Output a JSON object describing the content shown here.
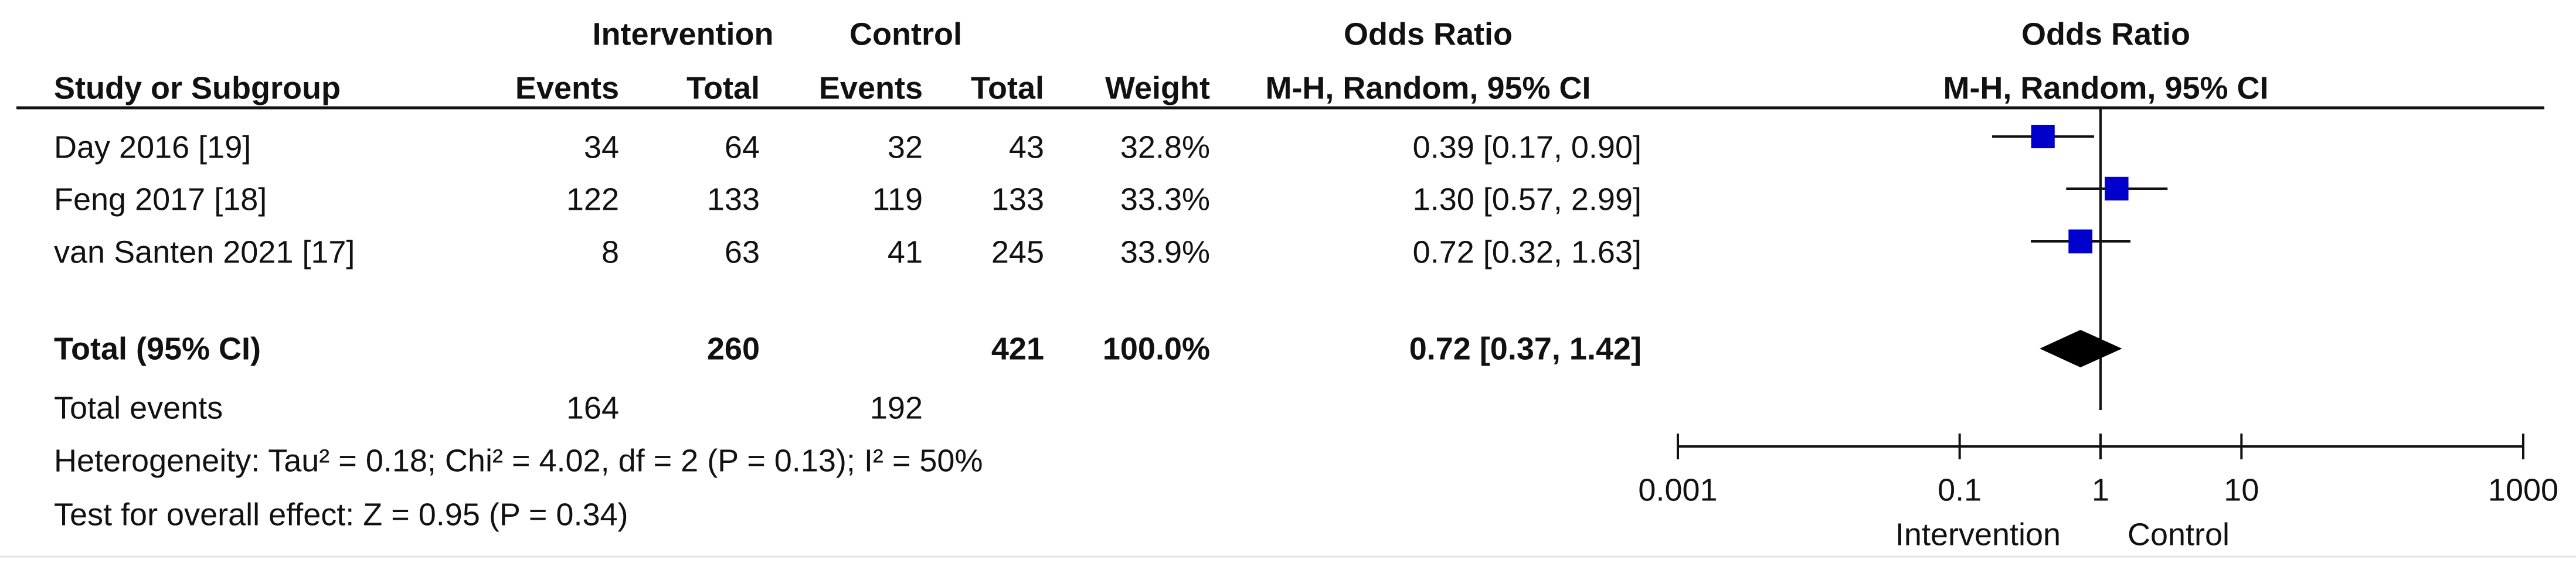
{
  "chart_data": {
    "type": "forest",
    "headers": {
      "group1": "Intervention",
      "group2": "Control",
      "study": "Study or Subgroup",
      "events": "Events",
      "total": "Total",
      "weight": "Weight",
      "effect": "Odds Ratio",
      "method": "M-H, Random, 95% CI"
    },
    "categories": [
      "Day 2016 [19]",
      "Feng 2017 [18]",
      "van Santen 2021 [17]"
    ],
    "intervention_events": [
      34,
      122,
      8
    ],
    "intervention_total": [
      64,
      133,
      63
    ],
    "control_events": [
      32,
      119,
      41
    ],
    "control_total": [
      43,
      133,
      245
    ],
    "weights": [
      32.8,
      33.3,
      33.9
    ],
    "weight_labels": [
      "32.8%",
      "33.3%",
      "33.9%"
    ],
    "values": [
      0.39,
      1.3,
      0.72
    ],
    "ci_low": [
      0.17,
      0.57,
      0.32
    ],
    "ci_high": [
      0.9,
      2.99,
      1.63
    ],
    "value_labels": [
      "0.39 [0.17, 0.90]",
      "1.30 [0.57, 2.99]",
      "0.72 [0.32, 1.63]"
    ],
    "total": {
      "label": "Total (95% CI)",
      "intervention_total": 260,
      "control_total": 421,
      "weight": 100.0,
      "weight_label": "100.0%",
      "value": 0.72,
      "ci_low": 0.37,
      "ci_high": 1.42,
      "value_label": "0.72 [0.37, 1.42]"
    },
    "total_events": {
      "label": "Total events",
      "intervention": 164,
      "control": 192
    },
    "heterogeneity": "Heterogeneity: Tau² = 0.18; Chi² = 4.02, df = 2 (P = 0.13); I² = 50%",
    "overall_effect": "Test for overall effect: Z = 0.95 (P = 0.34)",
    "xscale": "log",
    "xlim": [
      0.001,
      1000
    ],
    "xticks": [
      0.001,
      0.1,
      1,
      10,
      1000
    ],
    "favours_left": "Intervention",
    "favours_right": "Control",
    "color": "#0000cc"
  }
}
